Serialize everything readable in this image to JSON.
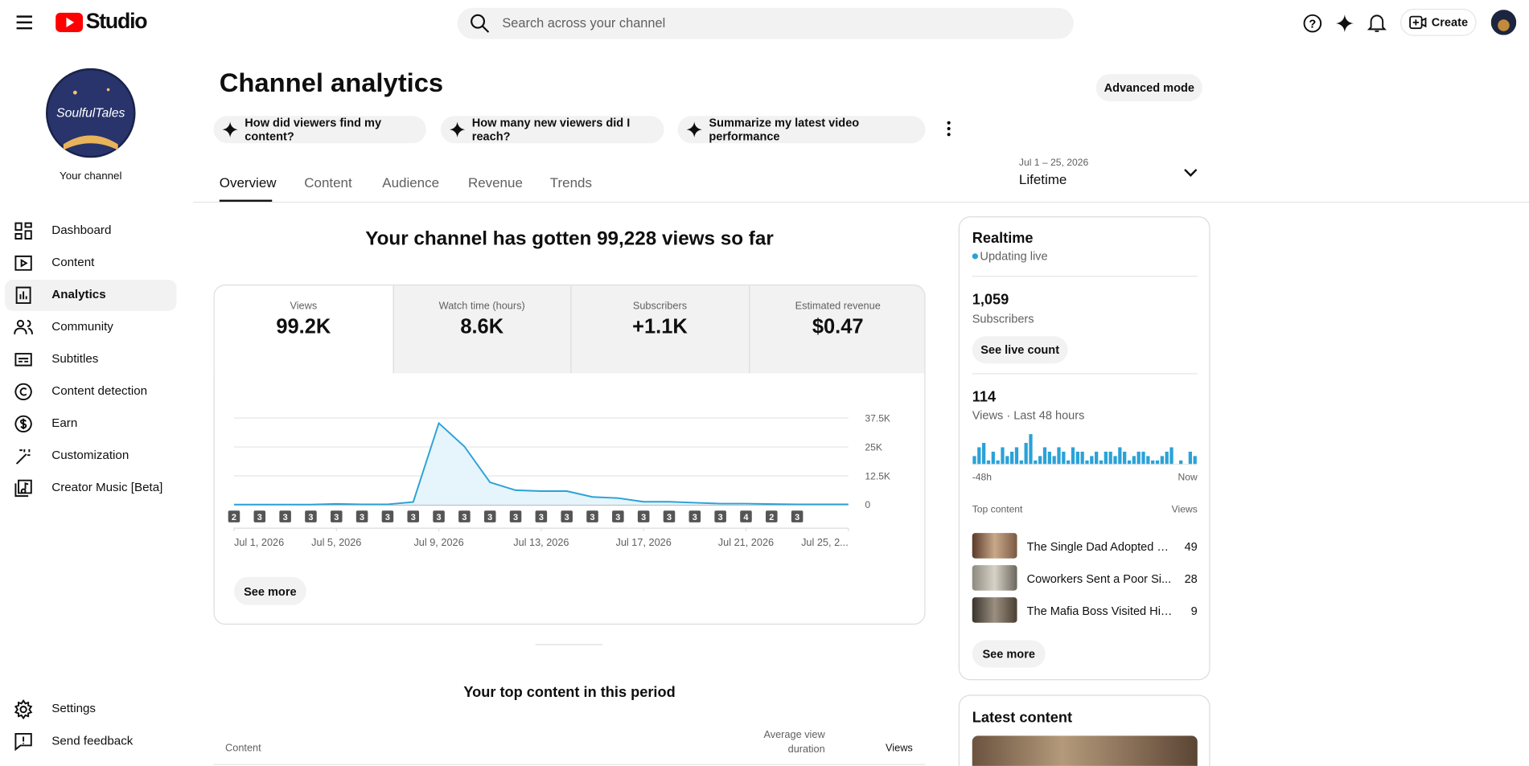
{
  "header": {
    "logo": "Studio",
    "search_placeholder": "Search across your channel",
    "create": "Create"
  },
  "sidebar": {
    "avatar_text": "SoulfulTales",
    "channel_label": "Your channel",
    "nav": [
      "Dashboard",
      "Content",
      "Analytics",
      "Community",
      "Subtitles",
      "Content detection",
      "Earn",
      "Customization",
      "Creator Music [Beta]"
    ],
    "footer": [
      "Settings",
      "Send feedback"
    ]
  },
  "page": {
    "title": "Channel analytics",
    "advanced": "Advanced mode",
    "prompts": [
      "How did viewers find my content?",
      "How many new viewers did I reach?",
      "Summarize my latest video performance"
    ],
    "tabs": [
      "Overview",
      "Content",
      "Audience",
      "Revenue",
      "Trends"
    ],
    "date_range": "Jul 1 – 25, 2026",
    "period": "Lifetime"
  },
  "overview": {
    "headline": "Your channel has gotten 99,228 views so far",
    "metrics": [
      {
        "label": "Views",
        "value": "99.2K"
      },
      {
        "label": "Watch time (hours)",
        "value": "8.6K"
      },
      {
        "label": "Subscribers",
        "value": "+1.1K"
      },
      {
        "label": "Estimated revenue",
        "value": "$0.47"
      }
    ],
    "chart": {
      "type": "line",
      "color": "#2aa2d8",
      "x": [
        "2026-07-01",
        "2026-07-02",
        "2026-07-03",
        "2026-07-04",
        "2026-07-05",
        "2026-07-06",
        "2026-07-07",
        "2026-07-08",
        "2026-07-09",
        "2026-07-10",
        "2026-07-11",
        "2026-07-12",
        "2026-07-13",
        "2026-07-14",
        "2026-07-15",
        "2026-07-16",
        "2026-07-17",
        "2026-07-18",
        "2026-07-19",
        "2026-07-20",
        "2026-07-21",
        "2026-07-22",
        "2026-07-23",
        "2026-07-24",
        "2026-07-25"
      ],
      "values": [
        100,
        100,
        100,
        100,
        400,
        200,
        200,
        1200,
        35300,
        25200,
        9700,
        6300,
        5900,
        5900,
        3400,
        2900,
        1300,
        1300,
        900,
        500,
        500,
        300,
        200,
        200,
        200
      ],
      "xlim": [
        "2026-07-01",
        "2026-07-25"
      ],
      "xticks": [
        {
          "value": "2026-07-01",
          "label": "Jul 1, 2026"
        },
        {
          "value": "2026-07-05",
          "label": "Jul 5, 2026"
        },
        {
          "value": "2026-07-09",
          "label": "Jul 9, 2026"
        },
        {
          "value": "2026-07-13",
          "label": "Jul 13, 2026"
        },
        {
          "value": "2026-07-17",
          "label": "Jul 17, 2026"
        },
        {
          "value": "2026-07-21",
          "label": "Jul 21, 2026"
        },
        {
          "value": "2026-07-25",
          "label": "Jul 25, 2..."
        }
      ],
      "ylim": [
        0,
        37500
      ],
      "yticks": [
        0,
        {
          "value": 12500,
          "label": "12.5K"
        },
        {
          "value": 25000,
          "label": "25K"
        },
        {
          "value": 37500,
          "label": "37.5K"
        }
      ],
      "grid": true,
      "markers": {
        "x": [
          "2026-07-01",
          "2026-07-02",
          "2026-07-03",
          "2026-07-04",
          "2026-07-05",
          "2026-07-06",
          "2026-07-07",
          "2026-07-08",
          "2026-07-09",
          "2026-07-10",
          "2026-07-11",
          "2026-07-12",
          "2026-07-13",
          "2026-07-14",
          "2026-07-15",
          "2026-07-16",
          "2026-07-17",
          "2026-07-18",
          "2026-07-19",
          "2026-07-20",
          "2026-07-21",
          "2026-07-22",
          "2026-07-23"
        ],
        "counts": [
          2,
          3,
          3,
          3,
          3,
          3,
          3,
          3,
          3,
          3,
          3,
          3,
          3,
          3,
          3,
          3,
          3,
          3,
          3,
          3,
          4,
          2,
          3
        ]
      }
    },
    "see_more": "See more",
    "top_title": "Your top content in this period",
    "table_headers": [
      "Content",
      "Average view duration",
      "Views"
    ]
  },
  "realtime": {
    "title": "Realtime",
    "status": "Updating live",
    "subscribers": "1,059",
    "subscribers_label": "Subscribers",
    "see_live": "See live count",
    "views": "114",
    "views_label": "Views · Last 48 hours",
    "chart": {
      "type": "bar",
      "color": "#2aa2d8",
      "values": [
        2,
        4,
        5,
        1,
        3,
        1,
        4,
        2,
        3,
        4,
        1,
        5,
        7,
        1,
        2,
        4,
        3,
        2,
        4,
        3,
        1,
        4,
        3,
        3,
        1,
        2,
        3,
        1,
        3,
        3,
        2,
        4,
        3,
        1,
        2,
        3,
        3,
        2,
        1,
        1,
        2,
        3,
        4,
        0,
        1,
        0,
        3,
        2
      ],
      "ylim": [
        0,
        8
      ]
    },
    "start_label": "-48h",
    "end_label": "Now",
    "top_header": [
      "Top content",
      "Views"
    ],
    "top": [
      {
        "title": "The Single Dad Adopted a...",
        "views": 49
      },
      {
        "title": "Coworkers Sent a Poor Si...",
        "views": 28
      },
      {
        "title": "The Mafia Boss Visited His ...",
        "views": 9
      }
    ],
    "see_more": "See more"
  },
  "latest": {
    "title": "Latest content"
  }
}
